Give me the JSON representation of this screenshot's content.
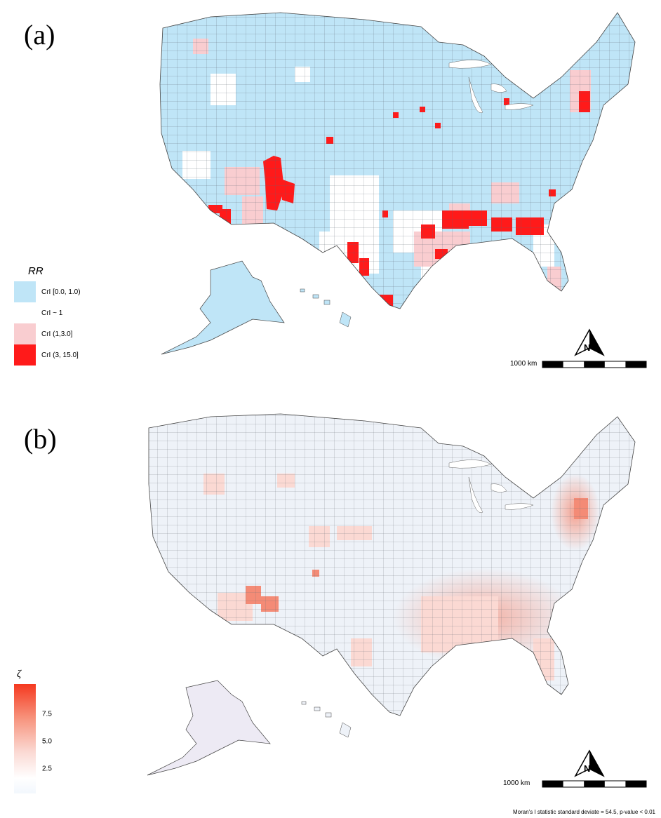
{
  "panel_a": {
    "label": "(a)",
    "legend_title": "RR",
    "legend_items": [
      {
        "label": "CrI [0.0, 1.0)",
        "color": "#bfe5f7"
      },
      {
        "label": "CrI ~ 1",
        "color": "#ffffff"
      },
      {
        "label": "CrI (1,3.0]",
        "color": "#f9cdd0"
      },
      {
        "label": "CrI (3, 15.0]",
        "color": "#ff1a1a"
      }
    ],
    "scale_label": "1000 km",
    "north_label": "N"
  },
  "panel_b": {
    "label": "(b)",
    "legend_title": "ζ",
    "ticks": [
      "7.5",
      "5.0",
      "2.5"
    ],
    "tick_values": [
      7.5,
      5.0,
      2.5
    ],
    "scale_max": 10,
    "scale_label": "1000 km",
    "north_label": "N",
    "footnote": "Moran's I statistic standard deviate = 54.5, p-value < 0.01"
  },
  "colors": {
    "low_blue": "#bfe5f7",
    "high_red": "#ff1a1a",
    "pale_red": "#f9cdd0",
    "zeta_base": "#eef2f8"
  }
}
